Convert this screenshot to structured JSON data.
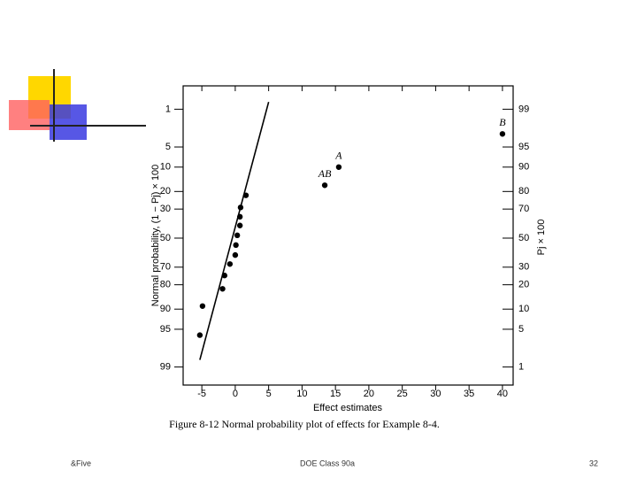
{
  "chart_data": {
    "type": "scatter",
    "caption": "Figure 8-12    Normal probability plot of effects for Example 8-4.",
    "x_label": "Effect estimates",
    "y_label": "Normal probability, (1 − Pj) × 100",
    "y2_label": "Pj × 100",
    "yscale": "normal-probability",
    "xlim": [
      -7.8,
      41.6
    ],
    "xticks": [
      -5,
      0,
      5,
      10,
      15,
      20,
      25,
      30,
      35,
      40
    ],
    "ylim": [
      0.3,
      99.6
    ],
    "yticks": [
      1,
      5,
      10,
      20,
      30,
      50,
      70,
      80,
      90,
      95,
      99
    ],
    "y2lim": [
      99.7,
      0.4
    ],
    "y2ticks": [
      99,
      95,
      90,
      80,
      70,
      50,
      30,
      20,
      10,
      5,
      1
    ],
    "series": [
      {
        "color": "#000",
        "x": [
          -5.3,
          -4.9,
          -1.9,
          -1.6,
          -0.8,
          0,
          0.1,
          0.3,
          0.7,
          0.7,
          0.8,
          1.6,
          13.4,
          15.5,
          40
        ],
        "values": [
          96,
          89,
          82,
          75,
          68,
          62,
          55,
          48,
          41,
          35,
          29,
          22,
          17,
          10,
          3
        ],
        "labels": [
          null,
          null,
          null,
          null,
          null,
          null,
          null,
          null,
          null,
          null,
          null,
          null,
          "AB",
          "A",
          "B"
        ]
      }
    ],
    "fit_line": {
      "x": [
        -5.3,
        5
      ],
      "values": [
        98.6,
        0.7
      ]
    },
    "footer": {
      "left": "&Five",
      "center": "DOE Class 90a",
      "right": "32"
    }
  }
}
